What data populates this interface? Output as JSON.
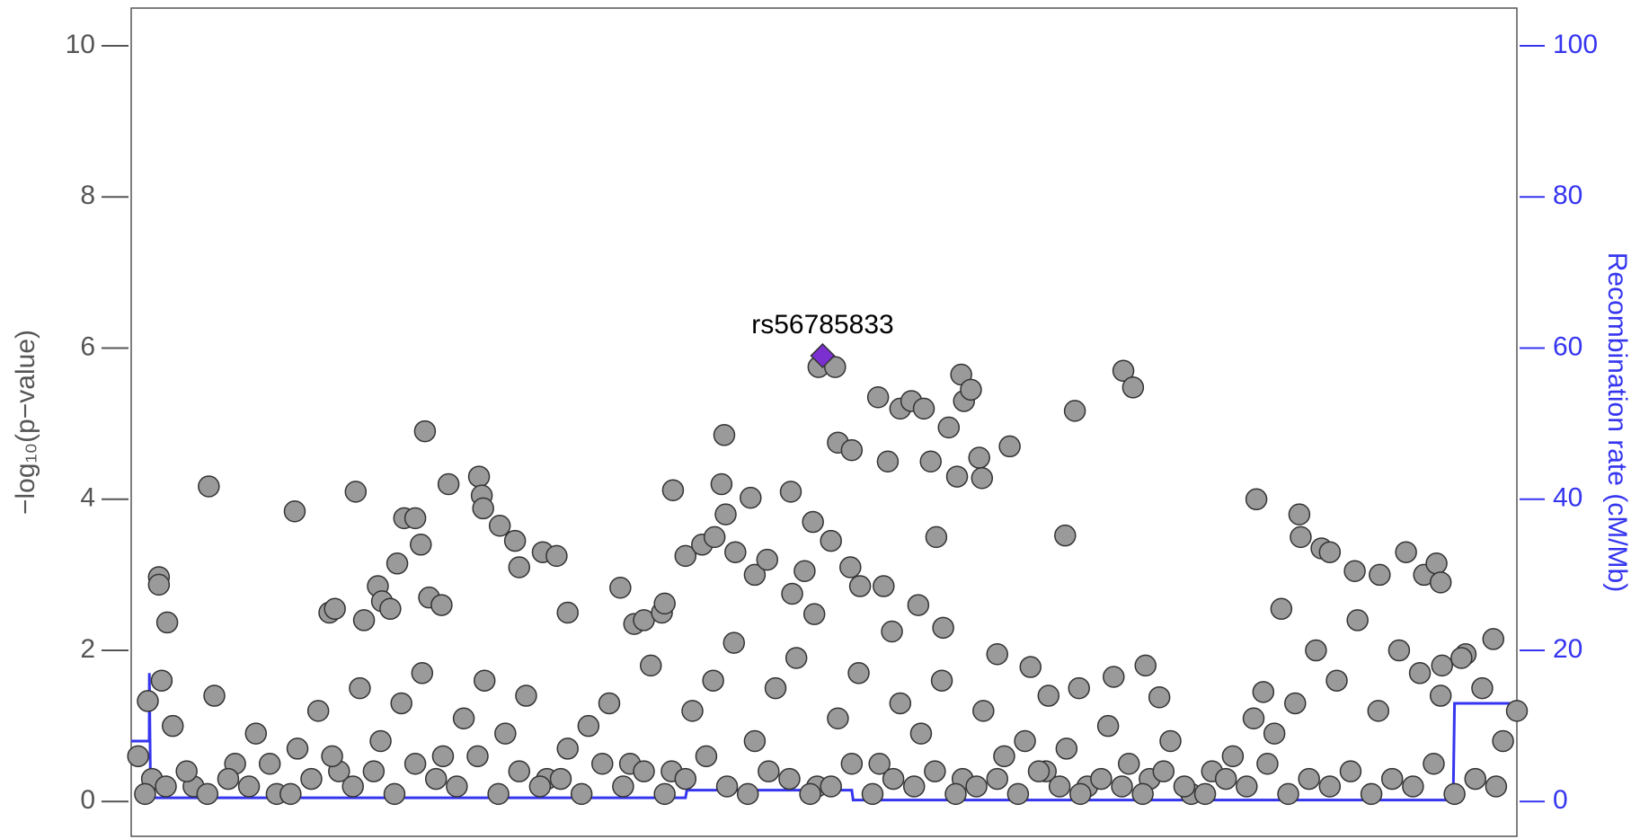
{
  "chart_data": {
    "type": "scatter",
    "ylabel": "−log₁₀(p−value)",
    "y2label": "Recombination rate (cM/Mb)",
    "xlim": [
      0,
      100
    ],
    "ylim": [
      -0.46,
      10.5
    ],
    "yticks": [
      0,
      2,
      4,
      6,
      8,
      10
    ],
    "y2lim": [
      -4.6,
      105
    ],
    "y2ticks": [
      0,
      20,
      40,
      60,
      80,
      100
    ],
    "y2color": "#3535f0",
    "annotation": {
      "text": "rs56785833",
      "x": 49.9,
      "y": 5.9,
      "color": "#7b2fd0"
    },
    "series": [
      {
        "color": "#9a9a9a",
        "x": [
          2.0,
          2.0,
          2.6,
          2.2,
          1.2,
          5.6,
          11.8,
          16.2,
          21.2,
          22.9,
          25.1,
          25.3,
          25.4,
          26.6,
          27.7,
          28.0,
          29.7,
          30.7,
          31.5,
          19.7,
          20.5,
          20.9,
          19.2,
          17.8,
          18.1,
          18.7,
          14.3,
          14.7,
          16.8,
          21.5,
          22.4,
          35.3,
          36.3,
          37.0,
          38.3,
          38.5,
          39.1,
          40.0,
          41.2,
          42.1,
          42.6,
          42.8,
          42.9,
          43.6,
          44.7,
          45.0,
          45.9,
          47.6,
          47.7,
          48.6,
          49.2,
          49.3,
          49.6,
          50.8,
          50.5,
          51.0,
          52.0,
          51.9,
          52.6,
          53.9,
          54.3,
          54.6,
          54.9,
          55.5,
          56.3,
          56.8,
          57.2,
          57.7,
          58.1,
          58.6,
          59.0,
          59.6,
          59.9,
          60.1,
          60.6,
          61.2,
          61.4,
          63.4,
          62.5,
          64.9,
          66.2,
          67.4,
          68.1,
          68.4,
          70.9,
          71.6,
          72.3,
          73.2,
          74.2,
          81.2,
          81.7,
          83.0,
          84.3,
          84.4,
          85.9,
          86.5,
          88.3,
          90.1,
          92.0,
          93.3,
          94.2,
          94.5,
          94.6,
          96.3,
          98.3,
          100.0,
          0.5,
          1.5,
          3.0,
          4.5,
          6.0,
          7.5,
          9.0,
          10.5,
          12.0,
          13.5,
          15.0,
          16.5,
          18.0,
          19.5,
          21.0,
          22.5,
          24.0,
          25.5,
          27.0,
          28.5,
          30.0,
          31.5,
          33.0,
          34.5,
          36.0,
          37.5,
          39.0,
          40.5,
          42.0,
          43.5,
          45.0,
          46.5,
          48.0,
          49.5,
          51.0,
          52.5,
          54.0,
          55.5,
          57.0,
          58.5,
          60.0,
          61.5,
          63.0,
          64.5,
          66.0,
          67.5,
          69.0,
          70.5,
          72.0,
          73.5,
          75.0,
          76.5,
          78.0,
          79.5,
          81.0,
          82.5,
          84.0,
          85.5,
          87.0,
          88.5,
          90.0,
          91.5,
          93.0,
          94.5,
          96.0,
          97.5,
          99.0,
          1.0,
          2.5,
          4.0,
          5.5,
          7.0,
          8.5,
          10.0,
          11.5,
          13.0,
          14.5,
          16.0,
          17.5,
          19.0,
          20.5,
          22.0,
          23.5,
          25.0,
          26.5,
          28.0,
          29.5,
          31.0,
          32.5,
          34.0,
          35.5,
          37.0,
          38.5,
          40.0,
          41.5,
          43.0,
          44.5,
          46.0,
          47.5,
          49.0,
          50.5,
          52.0,
          53.5,
          55.0,
          56.5,
          58.0,
          59.5,
          61.0,
          62.5,
          64.0,
          65.5,
          67.0,
          68.5,
          70.0,
          71.5,
          73.0,
          74.5,
          76.0,
          77.5,
          79.0,
          80.5,
          82.0,
          83.5,
          85.0,
          86.5,
          88.0,
          89.5,
          91.0,
          92.5,
          94.0,
          95.5,
          97.0,
          98.5
        ],
        "values": [
          2.97,
          2.87,
          2.37,
          1.6,
          1.33,
          4.17,
          3.84,
          4.1,
          4.9,
          4.2,
          4.3,
          4.05,
          3.88,
          3.65,
          3.45,
          3.1,
          3.3,
          3.25,
          2.5,
          3.75,
          3.75,
          3.4,
          3.15,
          2.85,
          2.65,
          2.55,
          2.5,
          2.55,
          2.4,
          2.7,
          2.6,
          2.83,
          2.35,
          2.4,
          2.5,
          2.62,
          4.12,
          3.25,
          3.4,
          3.5,
          4.2,
          4.85,
          3.8,
          3.3,
          4.02,
          3.0,
          3.2,
          4.1,
          2.75,
          3.05,
          3.7,
          2.48,
          5.75,
          5.75,
          3.45,
          4.75,
          4.65,
          3.1,
          2.85,
          5.35,
          2.85,
          4.5,
          2.25,
          5.2,
          5.3,
          2.6,
          5.2,
          4.5,
          3.5,
          2.3,
          4.95,
          4.3,
          5.65,
          5.3,
          5.45,
          4.55,
          4.28,
          4.7,
          1.95,
          1.78,
          1.4,
          3.52,
          5.17,
          1.5,
          1.65,
          5.7,
          5.48,
          1.8,
          1.38,
          4.0,
          1.45,
          2.55,
          3.8,
          3.5,
          3.35,
          3.3,
          3.05,
          3.0,
          3.3,
          3.0,
          3.15,
          2.9,
          1.8,
          1.95,
          2.15,
          1.2,
          0.6,
          0.3,
          1.0,
          0.2,
          1.4,
          0.5,
          0.9,
          0.1,
          0.7,
          1.2,
          0.4,
          1.5,
          0.8,
          1.3,
          1.7,
          0.6,
          1.1,
          1.6,
          0.9,
          1.4,
          0.3,
          0.7,
          1.0,
          1.3,
          0.5,
          1.8,
          0.4,
          1.2,
          1.6,
          2.1,
          0.8,
          1.5,
          1.9,
          0.2,
          1.1,
          1.7,
          0.5,
          1.3,
          0.9,
          1.6,
          0.3,
          1.2,
          0.6,
          0.8,
          0.4,
          0.7,
          0.2,
          1.0,
          0.5,
          0.3,
          0.8,
          0.1,
          0.4,
          0.6,
          1.1,
          0.9,
          1.3,
          2.0,
          1.6,
          2.4,
          1.2,
          2.0,
          1.7,
          1.4,
          1.9,
          1.5,
          0.8,
          0.1,
          0.2,
          0.4,
          0.1,
          0.3,
          0.2,
          0.5,
          0.1,
          0.3,
          0.6,
          0.2,
          0.4,
          0.1,
          0.5,
          0.3,
          0.2,
          0.6,
          0.1,
          0.4,
          0.2,
          0.3,
          0.1,
          0.5,
          0.2,
          0.4,
          0.1,
          0.3,
          0.6,
          0.2,
          0.1,
          0.4,
          0.3,
          0.1,
          0.2,
          0.5,
          0.1,
          0.3,
          0.2,
          0.4,
          0.1,
          0.2,
          0.3,
          0.1,
          0.4,
          0.2,
          0.1,
          0.3,
          0.2,
          0.1,
          0.4,
          0.2,
          0.1,
          0.3,
          0.2,
          0.5,
          0.1,
          0.3,
          0.2,
          0.4,
          0.1,
          0.3,
          0.2,
          0.5,
          0.1,
          0.3,
          0.2
        ]
      },
      {
        "color": "#3535f0",
        "axis": "y2",
        "x": [
          0,
          1.3,
          1.31,
          1.4,
          12,
          40,
          40.1,
          52,
          52.1,
          95.4,
          95.5,
          100
        ],
        "values": [
          8,
          8,
          17,
          0.5,
          0.5,
          0.5,
          1.5,
          1.5,
          0.2,
          0.2,
          13,
          13
        ]
      }
    ]
  }
}
